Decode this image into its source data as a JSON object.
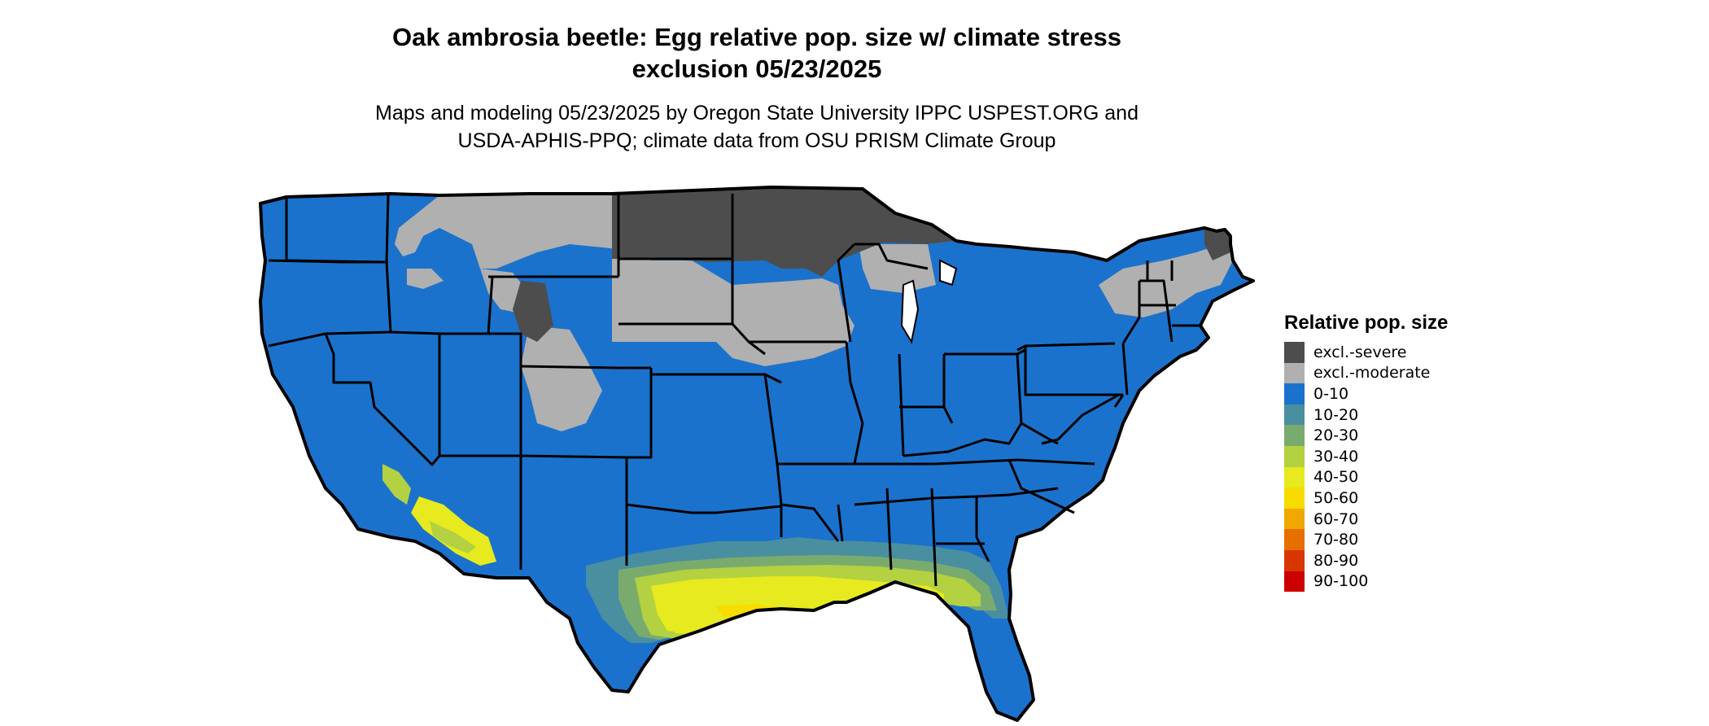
{
  "figure": {
    "title_line1": "Oak ambrosia beetle: Egg relative pop. size w/ climate stress",
    "title_line2": "exclusion 05/23/2025",
    "subtitle_line1": "Maps and modeling 05/23/2025 by Oregon State University IPPC USPEST.ORG and",
    "subtitle_line2": "USDA-APHIS-PPQ; climate data from OSU PRISM Climate Group"
  },
  "legend": {
    "title": "Relative pop. size",
    "items": [
      {
        "label": "excl.-severe",
        "color": "#4d4d4d"
      },
      {
        "label": "excl.-moderate",
        "color": "#b0b0b0"
      },
      {
        "label": "0-10",
        "color": "#1b72cc"
      },
      {
        "label": "10-20",
        "color": "#4a8fa0"
      },
      {
        "label": "20-30",
        "color": "#7aab6e"
      },
      {
        "label": "30-40",
        "color": "#b3d140"
      },
      {
        "label": "40-50",
        "color": "#e6ea1e"
      },
      {
        "label": "50-60",
        "color": "#f8dc00"
      },
      {
        "label": "60-70",
        "color": "#f0a800"
      },
      {
        "label": "70-80",
        "color": "#e57000"
      },
      {
        "label": "80-90",
        "color": "#d83600"
      },
      {
        "label": "90-100",
        "color": "#cc0000"
      }
    ]
  }
}
